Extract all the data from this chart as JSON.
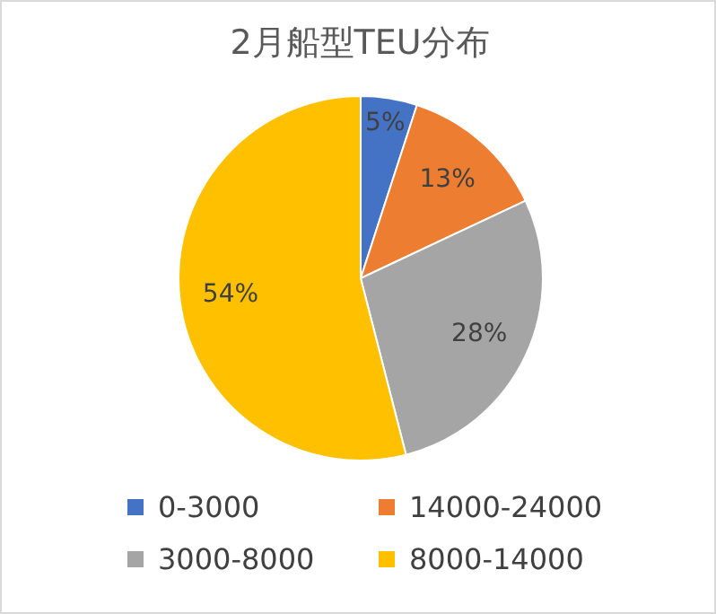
{
  "chart_data": {
    "type": "pie",
    "title": "2月船型TEU分布",
    "categories": [
      "0-3000",
      "14000-24000",
      "3000-8000",
      "8000-14000"
    ],
    "values": [
      5,
      13,
      28,
      54
    ],
    "colors": [
      "#4472c4",
      "#ed7d31",
      "#a5a5a5",
      "#ffc000"
    ],
    "value_labels": [
      "5%",
      "13%",
      "28%",
      "54%"
    ],
    "legend": "bottom"
  }
}
